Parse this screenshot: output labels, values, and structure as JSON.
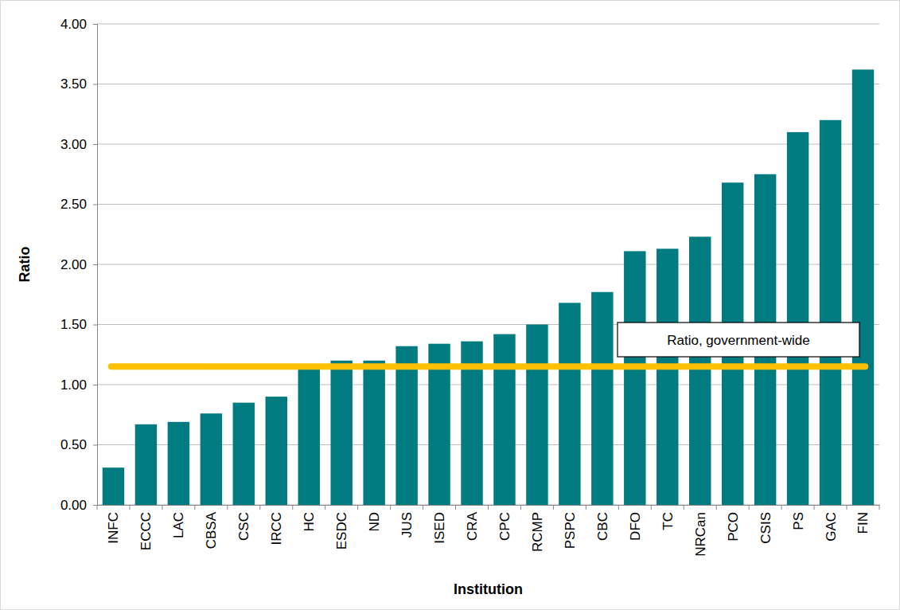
{
  "chart_data": {
    "type": "bar",
    "x_label": "Institution",
    "y_label": "Ratio",
    "categories": [
      "INFC",
      "ECCC",
      "LAC",
      "CBSA",
      "CSC",
      "IRCC",
      "HC",
      "ESDC",
      "ND",
      "JUS",
      "ISED",
      "CRA",
      "CPC",
      "RCMP",
      "PSPC",
      "CBC",
      "DFO",
      "TC",
      "NRCan",
      "PCO",
      "CSIS",
      "PS",
      "GAC",
      "FIN"
    ],
    "values": [
      0.31,
      0.67,
      0.69,
      0.76,
      0.85,
      0.9,
      1.15,
      1.2,
      1.2,
      1.32,
      1.34,
      1.36,
      1.42,
      1.5,
      1.68,
      1.77,
      2.11,
      2.13,
      2.23,
      2.68,
      2.75,
      3.1,
      3.2,
      3.62
    ],
    "color": "#007b80",
    "reference_line": {
      "value": 1.15,
      "label": "Ratio, government-wide"
    },
    "ylim": [
      0,
      4
    ],
    "yticks": [
      {
        "value": 0,
        "label": "0.00"
      },
      {
        "value": 0.5,
        "label": "0.50"
      },
      {
        "value": 1,
        "label": "1.00"
      },
      {
        "value": 1.5,
        "label": "1.50"
      },
      {
        "value": 2,
        "label": "2.00"
      },
      {
        "value": 2.5,
        "label": "2.50"
      },
      {
        "value": 3,
        "label": "3.00"
      },
      {
        "value": 3.5,
        "label": "3.50"
      },
      {
        "value": 4,
        "label": "4.00"
      }
    ],
    "grid": true
  }
}
